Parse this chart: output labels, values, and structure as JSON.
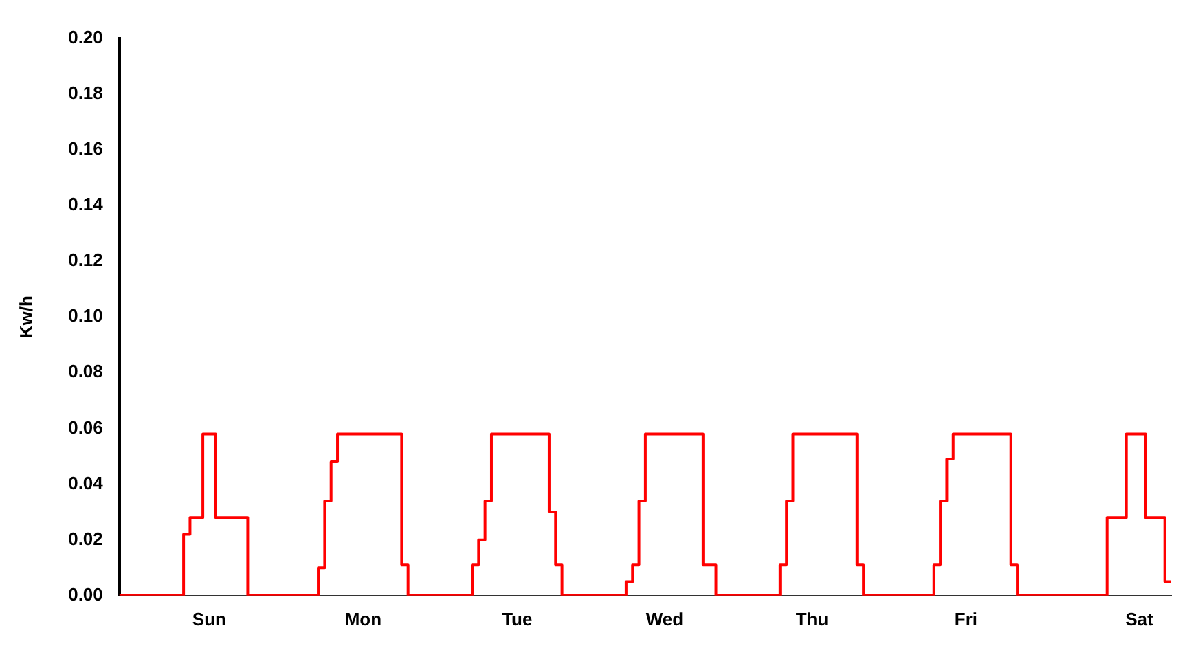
{
  "chart_data": {
    "type": "step",
    "ylabel": "Kw/h",
    "categories": [
      null,
      null,
      null,
      null,
      null,
      null,
      null,
      null,
      null,
      null,
      null,
      null,
      null,
      null,
      "Sun",
      null,
      null,
      null,
      null,
      null,
      null,
      null,
      null,
      null,
      null,
      null,
      null,
      null,
      null,
      null,
      null,
      null,
      null,
      null,
      null,
      null,
      null,
      null,
      "Mon",
      null,
      null,
      null,
      null,
      null,
      null,
      null,
      null,
      null,
      null,
      null,
      null,
      null,
      null,
      null,
      null,
      null,
      null,
      null,
      null,
      null,
      null,
      null,
      "Tue",
      null,
      null,
      null,
      null,
      null,
      null,
      null,
      null,
      null,
      null,
      null,
      null,
      null,
      null,
      null,
      null,
      null,
      null,
      null,
      null,
      null,
      null,
      "Wed",
      null,
      null,
      null,
      null,
      null,
      null,
      null,
      null,
      null,
      null,
      null,
      null,
      null,
      null,
      null,
      null,
      null,
      null,
      null,
      null,
      null,
      null,
      "Thu",
      null,
      null,
      null,
      null,
      null,
      null,
      null,
      null,
      null,
      null,
      null,
      null,
      null,
      null,
      null,
      null,
      null,
      null,
      null,
      null,
      null,
      null,
      null,
      "Fri",
      null,
      null,
      null,
      null,
      null,
      null,
      null,
      null,
      null,
      null,
      null,
      null,
      null,
      null,
      null,
      null,
      null,
      null,
      null,
      null,
      null,
      null,
      null,
      null,
      null,
      null,
      "Sat",
      null,
      null,
      null,
      null,
      null
    ],
    "ylim": [
      0,
      0.2
    ],
    "yticks": [
      {
        "value": 0,
        "label": "0.00"
      },
      {
        "value": 0.02,
        "label": "0.02"
      },
      {
        "value": 0.04,
        "label": "0.04"
      },
      {
        "value": 0.06,
        "label": "0.06"
      },
      {
        "value": 0.08,
        "label": "0.08"
      },
      {
        "value": 0.1,
        "label": "0.10"
      },
      {
        "value": 0.12,
        "label": "0.12"
      },
      {
        "value": 0.14,
        "label": "0.14"
      },
      {
        "value": 0.16,
        "label": "0.16"
      },
      {
        "value": 0.18,
        "label": "0.18"
      },
      {
        "value": 0.2,
        "label": "0.20"
      }
    ],
    "grid": false,
    "legend": false,
    "marker": "none",
    "line_style": "solid",
    "series": [
      {
        "color": "#ff0000",
        "values": [
          0,
          0,
          0,
          0,
          0,
          0,
          0,
          0,
          0,
          0,
          0,
          0.022,
          0.028,
          0.028,
          0.058,
          0.058,
          0.028,
          0.028,
          0.028,
          0.028,
          0.028,
          0,
          0,
          0,
          0,
          0,
          0,
          0,
          0,
          0,
          0,
          0,
          0.01,
          0.034,
          0.048,
          0.058,
          0.058,
          0.058,
          0.058,
          0.058,
          0.058,
          0.058,
          0.058,
          0.058,
          0.058,
          0.011,
          0,
          0,
          0,
          0,
          0,
          0,
          0,
          0,
          0,
          0,
          0.011,
          0.02,
          0.034,
          0.058,
          0.058,
          0.058,
          0.058,
          0.058,
          0.058,
          0.058,
          0.058,
          0.058,
          0.03,
          0.011,
          0,
          0,
          0,
          0,
          0,
          0,
          0,
          0,
          0,
          0,
          0.005,
          0.011,
          0.034,
          0.058,
          0.058,
          0.058,
          0.058,
          0.058,
          0.058,
          0.058,
          0.058,
          0.058,
          0.011,
          0.011,
          0,
          0,
          0,
          0,
          0,
          0,
          0,
          0,
          0,
          0,
          0.011,
          0.034,
          0.058,
          0.058,
          0.058,
          0.058,
          0.058,
          0.058,
          0.058,
          0.058,
          0.058,
          0.058,
          0.011,
          0,
          0,
          0,
          0,
          0,
          0,
          0,
          0,
          0,
          0,
          0,
          0.011,
          0.034,
          0.049,
          0.058,
          0.058,
          0.058,
          0.058,
          0.058,
          0.058,
          0.058,
          0.058,
          0.058,
          0.011,
          0,
          0,
          0,
          0,
          0,
          0,
          0,
          0,
          0,
          0,
          0,
          0,
          0,
          0,
          0.028,
          0.028,
          0.028,
          0.058,
          0.058,
          0.058,
          0.028,
          0.028,
          0.028,
          0.005
        ]
      }
    ]
  }
}
